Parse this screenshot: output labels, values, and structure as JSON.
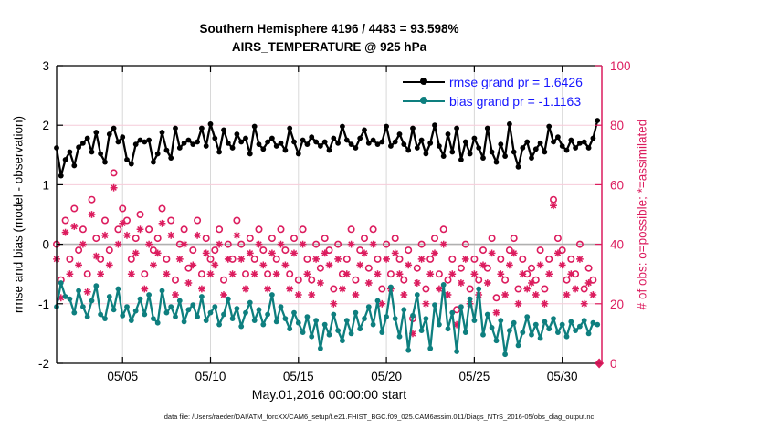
{
  "header": {
    "title_line1": "Southern Hemisphere 4196 / 4483 = 93.598%",
    "title_line2": "AIRS_TEMPERATURE @ 925 hPa"
  },
  "legend": {
    "rmse_label": "rmse grand pr = 1.6426",
    "bias_label": "bias grand pr = -1.1163"
  },
  "axes": {
    "left_label": "rmse and bias (model - observation)",
    "right_label": "# of obs: o=possible; *=assimilated",
    "x_label": "May.01,2016 00:00:00 start"
  },
  "footer": {
    "text": "data file: /Users/raeder/DAI/ATM_forcXX/CAM6_setup/f.e21.FHIST_BGC.f09_025.CAM6assim.011/Diags_NTrS_2016-05/obs_diag_output.nc"
  },
  "colors": {
    "rmse": "#000000",
    "bias": "#0e7f7f",
    "obs": "#dc1c5e",
    "legend_text": "#1616ff",
    "vgrid": "#d8d8d8",
    "hgrid_pink": "#f6ccd9",
    "zero_line": "#b0b0b0",
    "spine": "#000000"
  },
  "chart_data": {
    "type": "line",
    "title": "Southern Hemisphere 4196 / 4483 = 93.598% | AIRS_TEMPERATURE @ 925 hPa",
    "xlabel": "May.01,2016 00:00:00 start",
    "ylabel_left": "rmse and bias (model - observation)",
    "ylabel_right": "# of obs: o=possible; *=assimilated",
    "left_ylim": [
      -2,
      3
    ],
    "right_ylim": [
      0,
      100
    ],
    "xlim_days": [
      0.25,
      31.25
    ],
    "x_start_days": 0.25,
    "x_step_days": 0.25,
    "grid": true,
    "legend_position": "top-right-inside",
    "xticks": [
      {
        "t": 4,
        "label": "05/05"
      },
      {
        "t": 9,
        "label": "05/10"
      },
      {
        "t": 14,
        "label": "05/15"
      },
      {
        "t": 19,
        "label": "05/20"
      },
      {
        "t": 24,
        "label": "05/25"
      },
      {
        "t": 29,
        "label": "05/30"
      }
    ],
    "left_yticks": [
      {
        "v": -2,
        "label": "-2"
      },
      {
        "v": -1,
        "label": "-1"
      },
      {
        "v": 0,
        "label": "0"
      },
      {
        "v": 1,
        "label": "1"
      },
      {
        "v": 2,
        "label": "2"
      },
      {
        "v": 3,
        "label": "3"
      }
    ],
    "right_yticks": [
      {
        "v": 0,
        "label": "0"
      },
      {
        "v": 20,
        "label": "20"
      },
      {
        "v": 40,
        "label": "40"
      },
      {
        "v": 60,
        "label": "60"
      },
      {
        "v": 80,
        "label": "80"
      },
      {
        "v": 100,
        "label": "100"
      }
    ],
    "series": [
      {
        "name": "rmse",
        "legend": "rmse grand pr = 1.6426",
        "grand_value": 1.6426,
        "axis": "left",
        "style": "line-dot",
        "color_key": "rmse",
        "values": [
          1.62,
          1.15,
          1.42,
          1.55,
          1.32,
          1.63,
          1.7,
          1.78,
          1.55,
          1.88,
          1.52,
          1.38,
          1.85,
          1.95,
          1.72,
          1.8,
          1.42,
          1.35,
          1.68,
          1.75,
          1.72,
          1.75,
          1.38,
          1.52,
          1.88,
          1.58,
          1.45,
          1.95,
          1.62,
          1.7,
          1.75,
          1.68,
          1.72,
          1.95,
          1.65,
          2.02,
          1.78,
          1.55,
          1.92,
          1.7,
          1.62,
          1.85,
          1.72,
          1.78,
          1.52,
          1.98,
          1.68,
          1.6,
          1.72,
          1.78,
          1.65,
          1.7,
          1.58,
          1.95,
          1.72,
          1.52,
          1.75,
          1.68,
          1.8,
          1.72,
          1.65,
          1.72,
          1.58,
          1.78,
          1.7,
          1.98,
          1.75,
          1.68,
          1.62,
          1.78,
          1.92,
          1.7,
          1.75,
          1.68,
          1.72,
          1.98,
          1.65,
          1.72,
          1.85,
          1.68,
          1.58,
          1.95,
          1.62,
          1.75,
          1.52,
          1.7,
          2.0,
          1.65,
          1.48,
          1.85,
          1.55,
          1.95,
          1.42,
          1.72,
          1.52,
          1.78,
          1.62,
          1.45,
          1.95,
          1.55,
          1.38,
          1.68,
          1.48,
          2.02,
          1.55,
          1.3,
          1.62,
          1.72,
          1.45,
          1.6,
          1.7,
          1.55,
          1.98,
          1.72,
          1.8,
          1.65,
          1.58,
          1.75,
          1.62,
          1.7,
          1.72,
          1.62,
          1.78,
          2.08
        ]
      },
      {
        "name": "bias",
        "legend": "bias grand pr = -1.1163",
        "grand_value": -1.1163,
        "axis": "left",
        "style": "line-dot",
        "color_key": "bias",
        "values": [
          -1.05,
          -0.65,
          -0.88,
          -0.92,
          -1.15,
          -0.78,
          -1.05,
          -1.22,
          -0.95,
          -0.7,
          -1.18,
          -1.25,
          -0.88,
          -1.1,
          -0.75,
          -1.2,
          -1.05,
          -1.28,
          -1.12,
          -0.92,
          -1.18,
          -0.85,
          -1.25,
          -1.32,
          -0.78,
          -1.15,
          -1.05,
          -1.22,
          -0.95,
          -1.3,
          -1.1,
          -1.02,
          -1.22,
          -0.88,
          -1.28,
          -1.15,
          -1.05,
          -1.35,
          -1.18,
          -0.92,
          -1.25,
          -1.08,
          -1.38,
          -1.15,
          -0.98,
          -1.28,
          -1.1,
          -1.35,
          -1.18,
          -0.85,
          -1.3,
          -1.05,
          -1.25,
          -1.42,
          -1.15,
          -1.32,
          -1.48,
          -1.22,
          -1.55,
          -1.28,
          -1.75,
          -1.35,
          -1.52,
          -1.18,
          -1.45,
          -1.62,
          -1.28,
          -1.5,
          -1.15,
          -1.42,
          -1.25,
          -1.05,
          -1.35,
          -0.95,
          -1.48,
          -1.22,
          -0.72,
          -1.25,
          -1.55,
          -1.1,
          -1.78,
          -1.2,
          -0.85,
          -1.45,
          -1.25,
          -1.75,
          -1.02,
          -1.35,
          -0.68,
          -1.42,
          -1.15,
          -1.8,
          -1.05,
          -1.48,
          -0.92,
          -1.28,
          -0.75,
          -1.52,
          -1.18,
          -1.4,
          -1.62,
          -1.28,
          -1.85,
          -1.45,
          -1.32,
          -1.7,
          -1.48,
          -1.22,
          -1.52,
          -1.35,
          -1.58,
          -1.3,
          -1.42,
          -1.25,
          -1.48,
          -1.35,
          -1.55,
          -1.3,
          -1.45,
          -1.38,
          -1.28,
          -1.5,
          -1.32,
          -1.35
        ]
      },
      {
        "name": "possible",
        "legend": "o=possible",
        "axis": "right",
        "style": "scatter-circle",
        "color_key": "obs",
        "values": [
          40,
          28,
          48,
          35,
          52,
          38,
          45,
          30,
          55,
          42,
          35,
          48,
          38,
          64,
          45,
          52,
          48,
          35,
          42,
          50,
          30,
          45,
          38,
          42,
          52,
          35,
          48,
          28,
          40,
          45,
          32,
          38,
          48,
          30,
          42,
          35,
          38,
          45,
          28,
          40,
          35,
          48,
          40,
          30,
          42,
          35,
          45,
          38,
          30,
          42,
          35,
          45,
          38,
          30,
          42,
          28,
          45,
          35,
          28,
          40,
          32,
          42,
          38,
          25,
          40,
          30,
          35,
          45,
          28,
          38,
          42,
          32,
          45,
          35,
          25,
          40,
          30,
          42,
          35,
          28,
          38,
          15,
          32,
          40,
          25,
          35,
          42,
          30,
          45,
          28,
          35,
          18,
          32,
          40,
          25,
          35,
          28,
          38,
          32,
          42,
          22,
          35,
          28,
          38,
          42,
          25,
          35,
          30,
          32,
          28,
          38,
          25,
          35,
          55,
          42,
          38,
          28,
          35,
          30,
          40,
          25,
          32,
          28,
          null
        ]
      },
      {
        "name": "assimilated",
        "legend": "*=assimilated",
        "axis": "right",
        "style": "scatter-asterisk",
        "color_key": "obs",
        "values": [
          35,
          22,
          44,
          30,
          46,
          33,
          40,
          24,
          50,
          36,
          30,
          43,
          33,
          59,
          40,
          47,
          43,
          30,
          37,
          45,
          25,
          40,
          33,
          37,
          47,
          30,
          43,
          23,
          35,
          40,
          27,
          33,
          43,
          25,
          37,
          30,
          33,
          40,
          23,
          35,
          30,
          43,
          35,
          25,
          37,
          30,
          40,
          33,
          25,
          37,
          30,
          40,
          33,
          25,
          37,
          23,
          40,
          30,
          23,
          35,
          27,
          37,
          33,
          20,
          35,
          25,
          30,
          40,
          23,
          33,
          37,
          27,
          40,
          30,
          20,
          35,
          25,
          37,
          30,
          23,
          33,
          10,
          27,
          35,
          20,
          30,
          37,
          25,
          40,
          23,
          30,
          13,
          27,
          35,
          20,
          30,
          23,
          33,
          27,
          37,
          17,
          30,
          23,
          33,
          37,
          20,
          30,
          25,
          27,
          23,
          33,
          20,
          30,
          53,
          37,
          33,
          23,
          30,
          25,
          35,
          20,
          27,
          23,
          null
        ]
      }
    ],
    "final_marker": {
      "t": 31.1,
      "value": 0,
      "shape": "diamond",
      "axis": "right",
      "color_key": "obs"
    }
  }
}
